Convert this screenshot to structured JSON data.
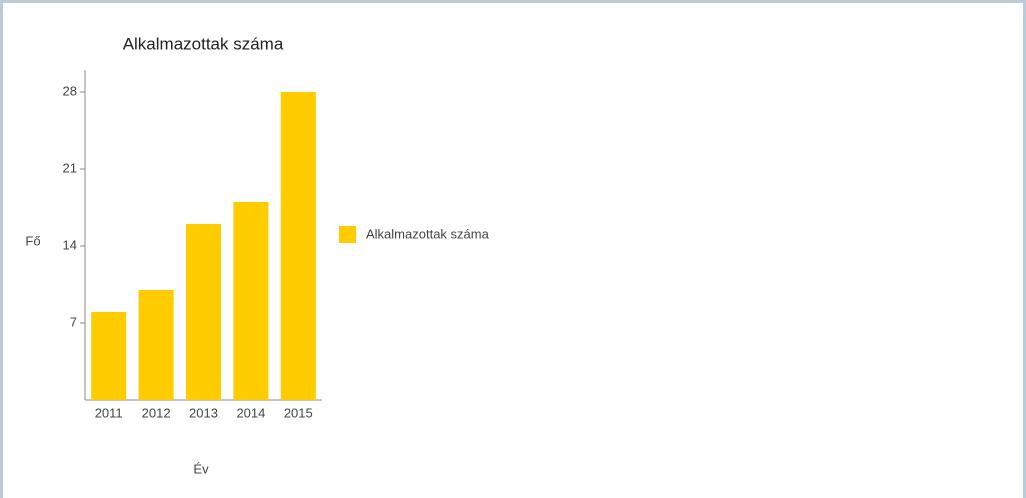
{
  "chart_data": {
    "type": "bar",
    "title": "Alkalmazottak száma",
    "x_label": "Év",
    "y_label": "Fő",
    "categories": [
      "2011",
      "2012",
      "2013",
      "2014",
      "2015"
    ],
    "series": [
      {
        "name": "Alkalmazottak száma",
        "color": "#ffcc00",
        "values": [
          8,
          10,
          16,
          18,
          28
        ]
      }
    ],
    "ylim": [
      0,
      30
    ],
    "yticks": [
      7,
      14,
      21,
      28
    ],
    "legend": "right"
  }
}
